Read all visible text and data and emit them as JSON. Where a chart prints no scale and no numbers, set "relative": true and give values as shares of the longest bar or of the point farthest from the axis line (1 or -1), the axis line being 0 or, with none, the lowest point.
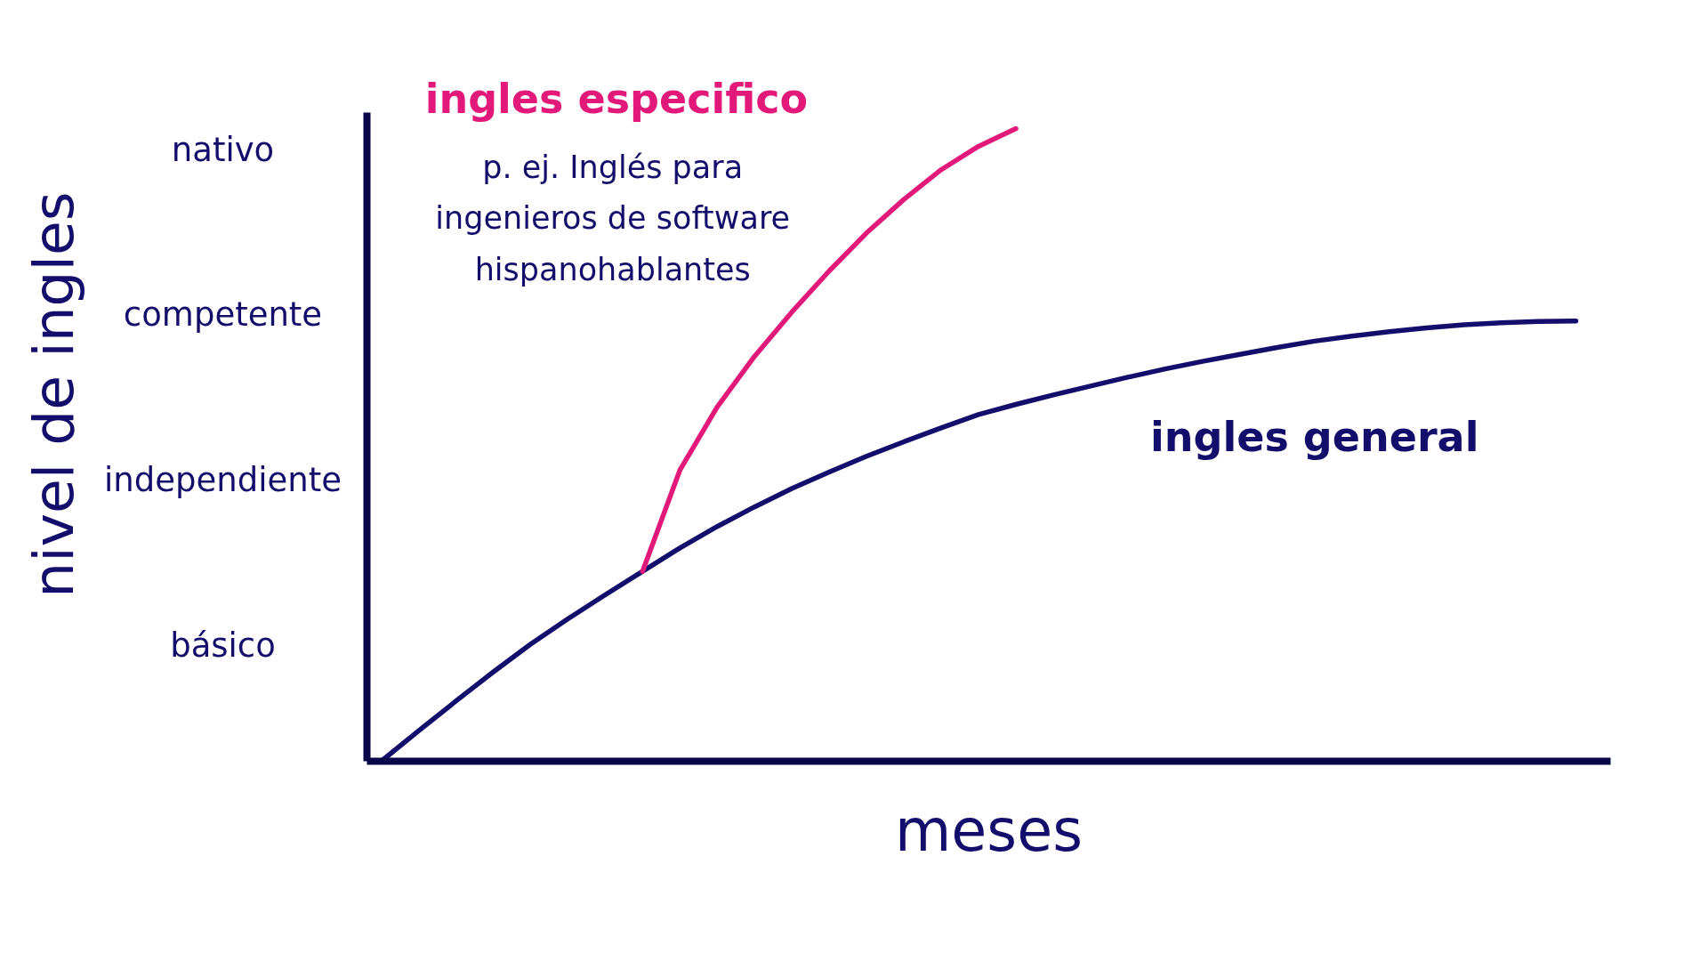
{
  "chart_data": {
    "type": "line",
    "xlabel": "meses",
    "relative": true,
    "annotations": [
      "nivel de ingles",
      "nativo",
      "competente",
      "independiente",
      "básico",
      "p. ej. Inglés para\ningenieros de software\nhispanohablantes"
    ],
    "categories": [
      null,
      null,
      null,
      null,
      null,
      null,
      null,
      null,
      null,
      null,
      null,
      null,
      null,
      null,
      null,
      null,
      null,
      null,
      null,
      null,
      null,
      null,
      null,
      null,
      null,
      null,
      null,
      null,
      null,
      null,
      null,
      null,
      null
    ],
    "series": [
      {
        "name": "ingles general",
        "color": "#130e6b",
        "values": [
          0.0,
          0.048,
          0.095,
          0.141,
          0.185,
          0.225,
          0.263,
          0.3,
          0.337,
          0.371,
          0.402,
          0.431,
          0.457,
          0.482,
          0.505,
          0.527,
          0.548,
          0.564,
          0.579,
          0.593,
          0.607,
          0.62,
          0.632,
          0.643,
          0.654,
          0.664,
          0.672,
          0.679,
          0.685,
          0.69,
          0.693,
          0.695,
          0.696
        ]
      },
      {
        "name": "ingles especifico",
        "color": "#e2187a",
        "values": [
          null,
          null,
          null,
          null,
          null,
          null,
          null,
          0.3,
          0.46,
          0.56,
          0.64,
          0.71,
          0.775,
          0.835,
          0.888,
          0.935,
          0.972,
          1.0,
          null,
          null,
          null,
          null,
          null,
          null,
          null,
          null,
          null,
          null,
          null,
          null,
          null,
          null,
          null
        ]
      }
    ],
    "line_style": "solid"
  }
}
